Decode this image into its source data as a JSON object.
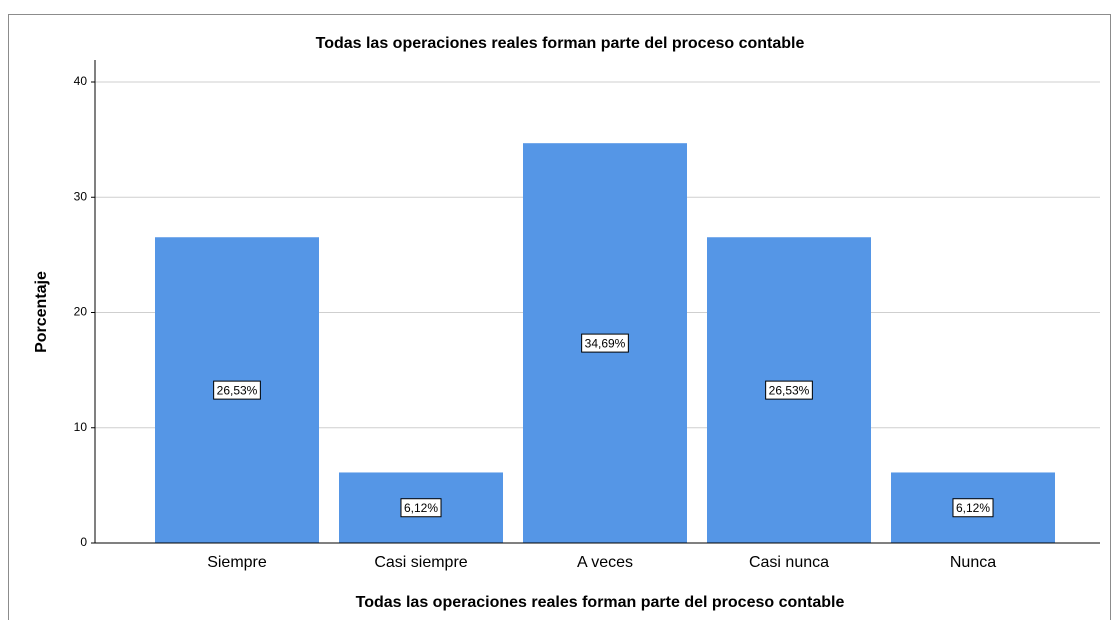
{
  "chart_data": {
    "type": "bar",
    "title": "Todas las operaciones reales forman parte del proceso contable",
    "x_label": "Todas las operaciones reales forman parte del proceso contable",
    "y_label": "Porcentaje",
    "categories": [
      "Siempre",
      "Casi siempre",
      "A veces",
      "Casi nunca",
      "Nunca"
    ],
    "values": [
      26.53,
      6.12,
      34.69,
      26.53,
      6.12
    ],
    "value_labels": [
      "26,53%",
      "6,12%",
      "34,69%",
      "26,53%",
      "6,12%"
    ],
    "color": "#5596e6",
    "ylim": [
      0,
      40
    ],
    "yticks": [
      0,
      10,
      20,
      30,
      40
    ],
    "grid": true
  }
}
